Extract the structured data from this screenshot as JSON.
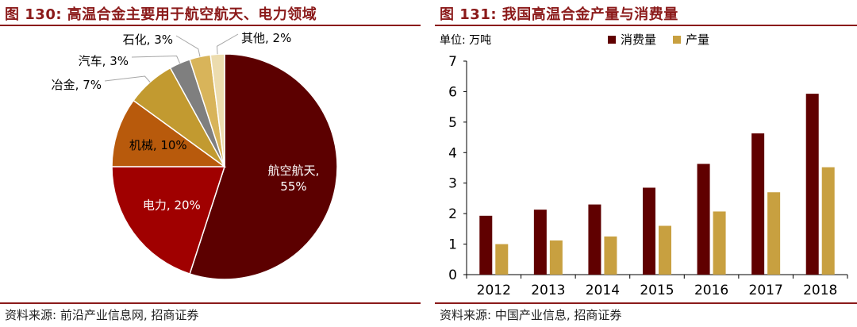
{
  "left": {
    "title": "图 130:  高温合金主要用于航空航天、电力领域",
    "source": "资料来源:  前沿产业信息网,  招商证券"
  },
  "right": {
    "title": "图 131:  我国高温合金产量与消费量",
    "source": "资料来源:  中国产业信息,  招商证券",
    "unit_label": "单位:  万吨"
  },
  "chart_data": [
    {
      "type": "pie",
      "title": "高温合金主要用于航空航天、电力领域",
      "slices": [
        {
          "label": "航空航天",
          "value": 55,
          "color": "#5c0000"
        },
        {
          "label": "电力",
          "value": 20,
          "color": "#a00000"
        },
        {
          "label": "机械",
          "value": 10,
          "color": "#b85a0c"
        },
        {
          "label": "冶金",
          "value": 7,
          "color": "#c29a30"
        },
        {
          "label": "汽车",
          "value": 3,
          "color": "#7f7f7f"
        },
        {
          "label": "石化",
          "value": 3,
          "color": "#d8b45a"
        },
        {
          "label": "其他",
          "value": 2,
          "color": "#ecdcae"
        }
      ],
      "slice_labels": [
        "航空航天,\n55%",
        "电力, 20%",
        "机械, 10%",
        "冶金, 7%",
        "汽车, 3%",
        "石化, 3%",
        "其他, 2%"
      ]
    },
    {
      "type": "bar",
      "title": "我国高温合金产量与消费量",
      "ylabel": "单位:  万吨",
      "categories": [
        "2012",
        "2013",
        "2014",
        "2015",
        "2016",
        "2017",
        "2018"
      ],
      "series": [
        {
          "name": "消费量",
          "color": "#600000",
          "values": [
            1.93,
            2.13,
            2.3,
            2.85,
            3.63,
            4.63,
            5.93
          ]
        },
        {
          "name": "产量",
          "color": "#c8a040",
          "values": [
            1.0,
            1.12,
            1.25,
            1.6,
            2.07,
            2.7,
            3.52
          ]
        }
      ],
      "ylim": [
        0,
        7
      ],
      "yticks": [
        0,
        1,
        2,
        3,
        4,
        5,
        6,
        7
      ],
      "legend": "top",
      "grid": false
    }
  ]
}
